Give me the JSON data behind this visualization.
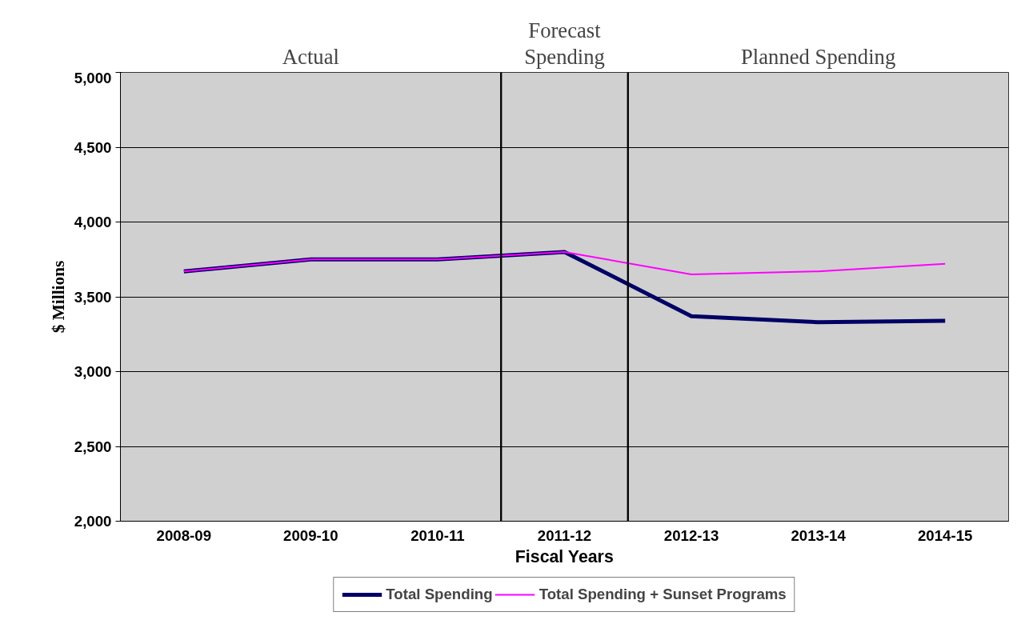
{
  "chart_data": {
    "type": "line",
    "xlabel": "Fiscal Years",
    "ylabel": "$ Millions",
    "categories": [
      "2008-09",
      "2009-10",
      "2010-11",
      "2011-12",
      "2012-13",
      "2013-14",
      "2014-15"
    ],
    "series": [
      {
        "name": "Total Spending",
        "color": "#000066",
        "values": [
          3670,
          3750,
          3750,
          3800,
          3370,
          3330,
          3340
        ]
      },
      {
        "name": "Total Spending + Sunset Programs",
        "color": "#ff00ff",
        "values": [
          3670,
          3750,
          3750,
          3800,
          3650,
          3670,
          3720
        ]
      }
    ],
    "ylim": [
      2000,
      5000
    ],
    "yticks": [
      {
        "value": 2000,
        "label": "2,000"
      },
      {
        "value": 2500,
        "label": "2,500"
      },
      {
        "value": 3000,
        "label": "3,000"
      },
      {
        "value": 3500,
        "label": "3,500"
      },
      {
        "value": 4000,
        "label": "4,000"
      },
      {
        "value": 4500,
        "label": "4,500"
      },
      {
        "value": 5000,
        "label": "5,000"
      }
    ],
    "bands": [
      {
        "axis": "x",
        "from": "2008-09",
        "to": "2010-11",
        "label": "Actual",
        "color": "#d0d0d0"
      },
      {
        "axis": "x",
        "from": "2011-12",
        "to": "2011-12",
        "label": "Forecast\nSpending",
        "color": "#d0d0d0"
      },
      {
        "axis": "x",
        "from": "2012-13",
        "to": "2014-15",
        "label": "Planned Spending",
        "color": "#d0d0d0"
      }
    ],
    "grid": "y",
    "legend": "bottom",
    "marker": "none",
    "line_style": "solid"
  }
}
